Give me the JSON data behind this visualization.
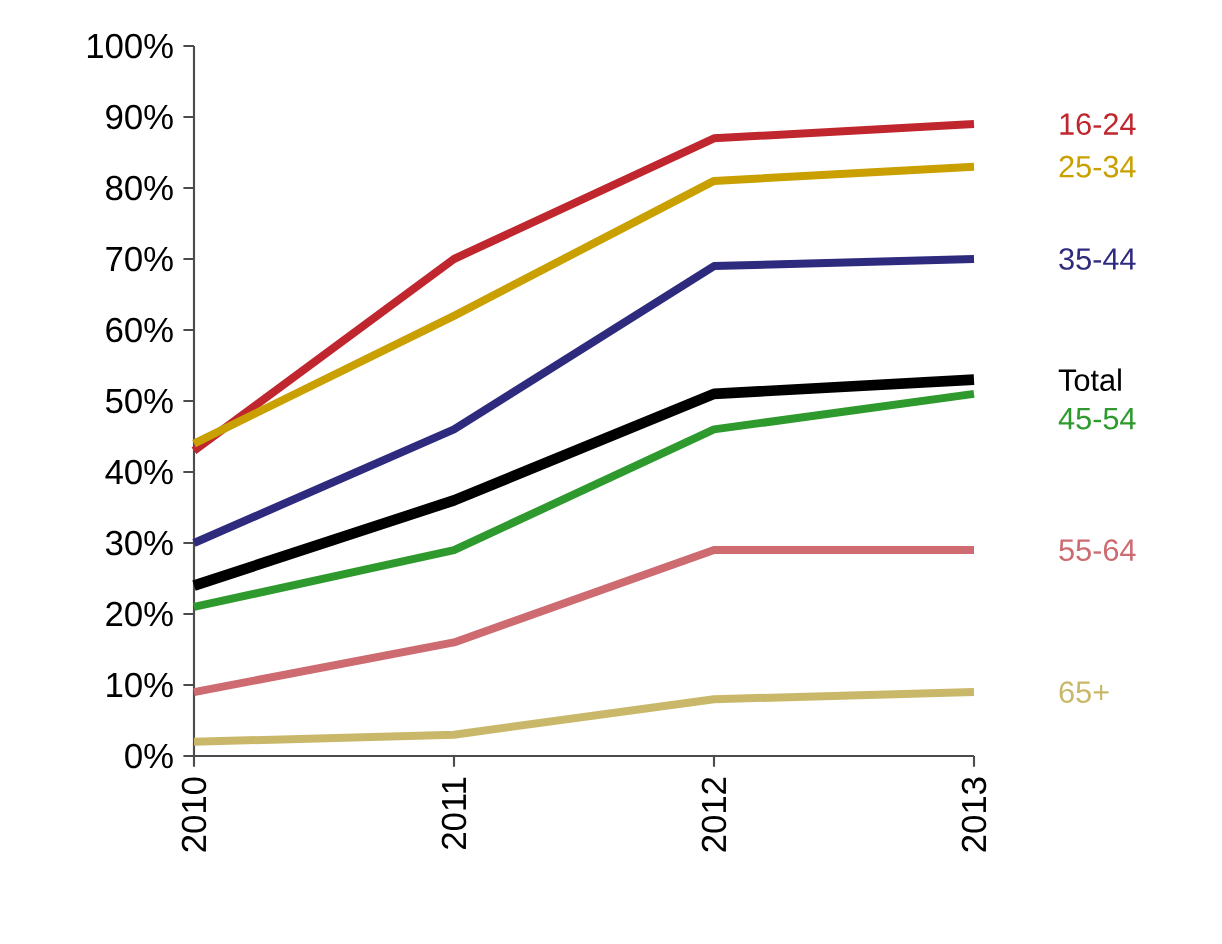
{
  "chart_data": {
    "type": "line",
    "x": [
      2010,
      2011,
      2012,
      2013
    ],
    "xlim": [
      2010,
      2013
    ],
    "xticks": [
      2010,
      2011,
      2012,
      2013
    ],
    "ylim": [
      0,
      100
    ],
    "yticks": [
      {
        "value": 0,
        "label": "0%"
      },
      {
        "value": 10,
        "label": "10%"
      },
      {
        "value": 20,
        "label": "20%"
      },
      {
        "value": 30,
        "label": "30%"
      },
      {
        "value": 40,
        "label": "40%"
      },
      {
        "value": 50,
        "label": "50%"
      },
      {
        "value": 60,
        "label": "60%"
      },
      {
        "value": 70,
        "label": "70%"
      },
      {
        "value": 80,
        "label": "80%"
      },
      {
        "value": 90,
        "label": "90%"
      },
      {
        "value": 100,
        "label": "100%"
      }
    ],
    "grid": false,
    "legend": false,
    "marker": "none",
    "line_style": "solid",
    "series": [
      {
        "name": "16-24",
        "color": "#c0262d",
        "values": [
          43,
          70,
          87,
          89
        ]
      },
      {
        "name": "25-34",
        "color": "#c9a000",
        "values": [
          44,
          62,
          81,
          83
        ]
      },
      {
        "name": "35-44",
        "color": "#2e2a7e",
        "values": [
          30,
          46,
          69,
          70
        ]
      },
      {
        "name": "Total",
        "color": "#000000",
        "values": [
          24,
          36,
          51,
          53
        ]
      },
      {
        "name": "45-54",
        "color": "#2e9a2e",
        "values": [
          21,
          29,
          46,
          51
        ]
      },
      {
        "name": "55-64",
        "color": "#cd6b70",
        "values": [
          9,
          16,
          29,
          29
        ]
      },
      {
        "name": "65+",
        "color": "#c9b86a",
        "values": [
          2,
          3,
          8,
          9
        ]
      }
    ]
  }
}
